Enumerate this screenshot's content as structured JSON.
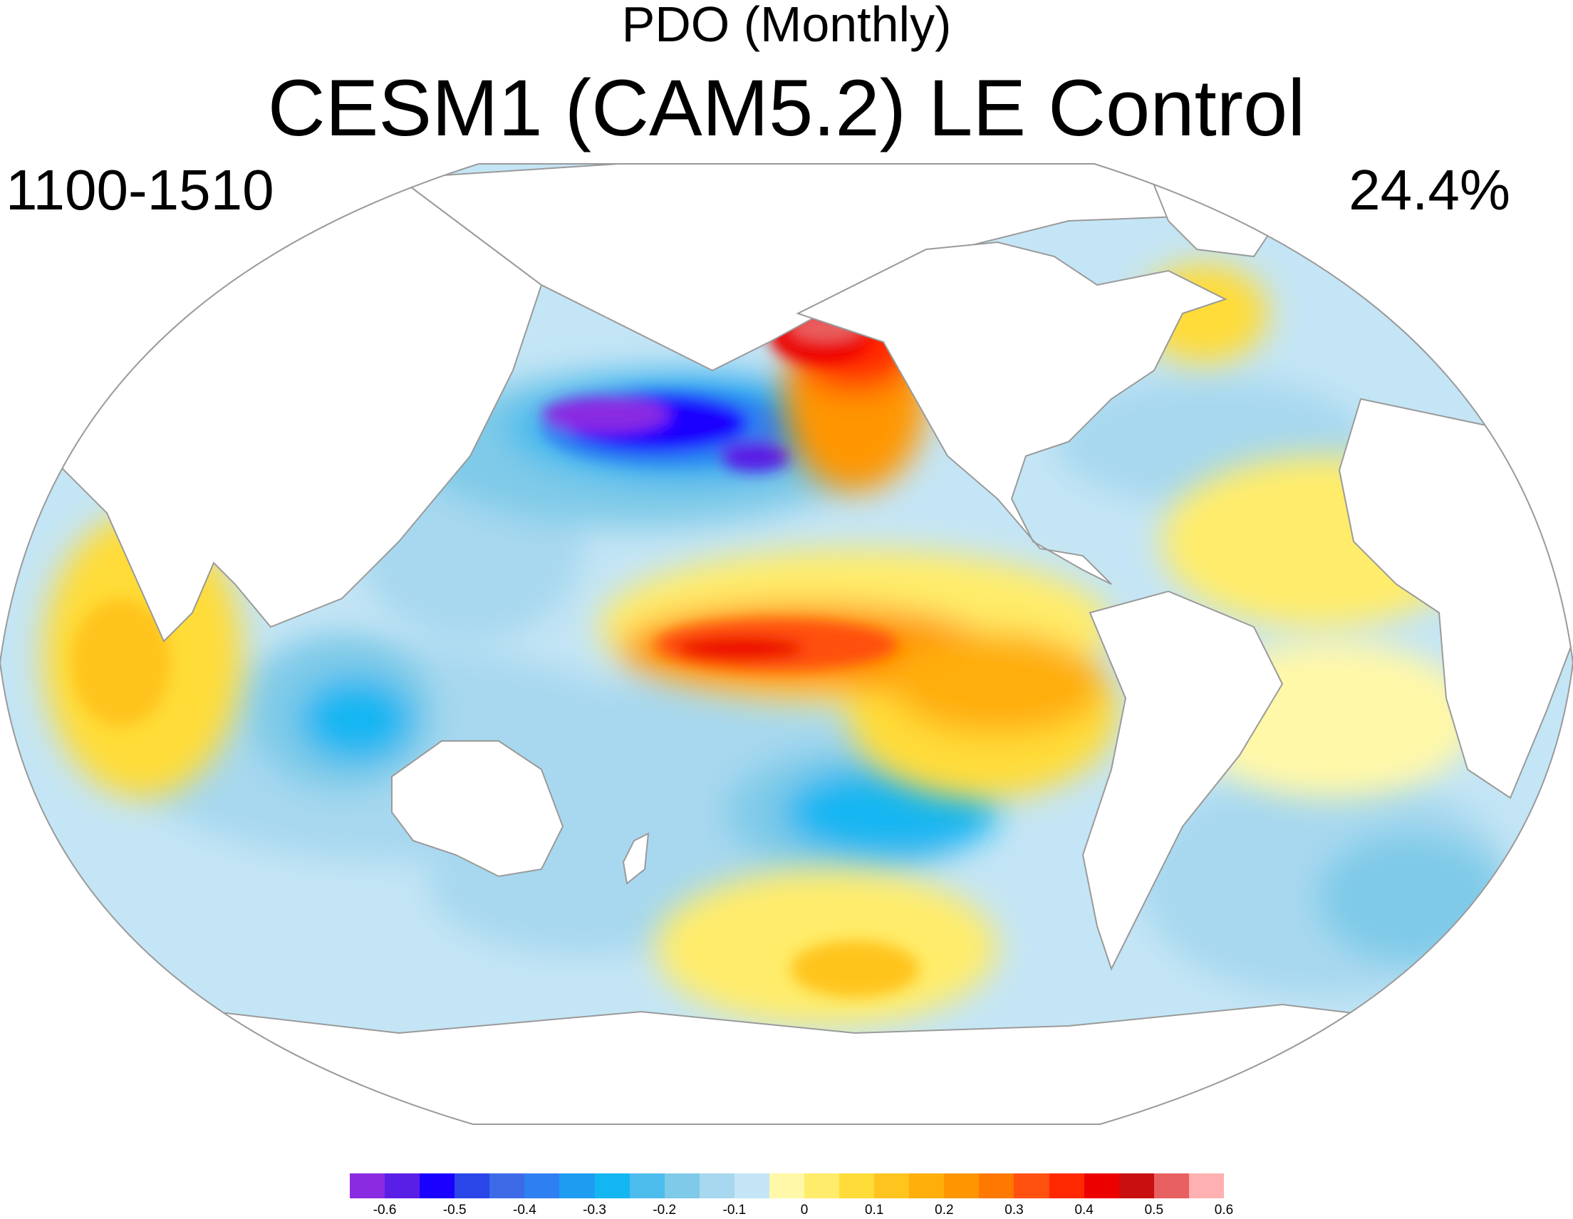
{
  "header": {
    "subtitle": "PDO (Monthly)",
    "title": "CESM1 (CAM5.2) LE Control",
    "left_label": "1100-1510",
    "right_label": "24.4%"
  },
  "map": {
    "projection": "Robinson-like global, Pacific-centered",
    "land_color": "#ffffff",
    "ocean_background_color": "#c4e5f5",
    "outline_color": "#9a9a9a",
    "features": [
      {
        "name": "north-pacific-cold-center",
        "value_min": -0.65
      },
      {
        "name": "alaska-coast-warm-band",
        "value_max": 0.6
      },
      {
        "name": "equatorial-pacific-warm-tongue",
        "value_max": 0.45
      },
      {
        "name": "south-pacific-cold-band",
        "value_min": -0.3
      },
      {
        "name": "south-pacific-warm-patch",
        "value_max": 0.2
      },
      {
        "name": "indian-ocean-warm",
        "value_max": 0.2
      }
    ]
  },
  "colorbar": {
    "colors": [
      "#8a2be2",
      "#5a1fe6",
      "#1a00ff",
      "#2a45e8",
      "#3d6be8",
      "#2e7ff2",
      "#1e9cf2",
      "#14b6f2",
      "#4cbced",
      "#7fcae8",
      "#a7d8ef",
      "#c4e5f5",
      "#fff8a8",
      "#ffec6a",
      "#ffdc38",
      "#ffc41e",
      "#ffae0a",
      "#ff9600",
      "#ff7800",
      "#ff5010",
      "#ff2800",
      "#ec0000",
      "#c81010",
      "#e86060",
      "#ffb0b0"
    ],
    "tick_labels": [
      "-0.6",
      "-0.5",
      "-0.4",
      "-0.3",
      "-0.2",
      "-0.1",
      "0",
      "0.1",
      "0.2",
      "0.3",
      "0.4",
      "0.5",
      "0.6"
    ]
  }
}
